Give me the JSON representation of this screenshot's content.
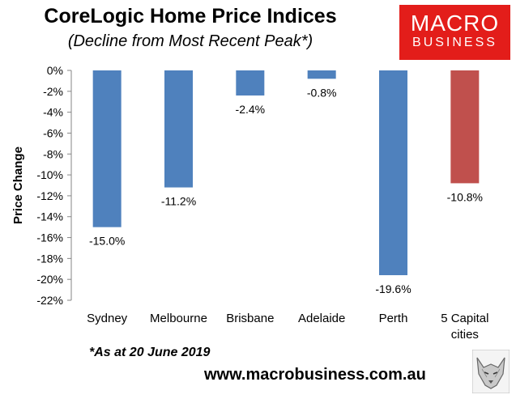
{
  "header": {
    "title": "CoreLogic Home Price Indices",
    "subtitle": "(Decline from Most Recent Peak*)"
  },
  "brand": {
    "logo_line1": "MACRO",
    "logo_line2": "BUSINESS",
    "logo_color": "#e31d1a",
    "url": "www.macrobusiness.com.au",
    "mascot_icon": "wolf-icon"
  },
  "footnote": "*As at 20 June 2019",
  "chart_data": {
    "type": "bar",
    "title": "CoreLogic Home Price Indices",
    "subtitle": "(Decline from Most Recent Peak*)",
    "xlabel": "",
    "ylabel": "Price Change",
    "ylim": [
      -22,
      0
    ],
    "yticks": [
      0,
      -2,
      -4,
      -6,
      -8,
      -10,
      -12,
      -14,
      -16,
      -18,
      -20,
      -22
    ],
    "ytick_labels": [
      "0%",
      "-2%",
      "-4%",
      "-6%",
      "-8%",
      "-10%",
      "-12%",
      "-14%",
      "-16%",
      "-18%",
      "-20%",
      "-22%"
    ],
    "categories": [
      "Sydney",
      "Melbourne",
      "Brisbane",
      "Adelaide",
      "Perth",
      "5 Capital cities"
    ],
    "values": [
      -15.0,
      -11.2,
      -2.4,
      -0.8,
      -19.6,
      -10.8
    ],
    "data_labels": [
      "-15.0%",
      "-11.2%",
      "-2.4%",
      "-0.8%",
      "-19.6%",
      "-10.8%"
    ],
    "colors": [
      "#4f81bd",
      "#4f81bd",
      "#4f81bd",
      "#4f81bd",
      "#4f81bd",
      "#c0504d"
    ],
    "grid": false,
    "legend": "none"
  }
}
